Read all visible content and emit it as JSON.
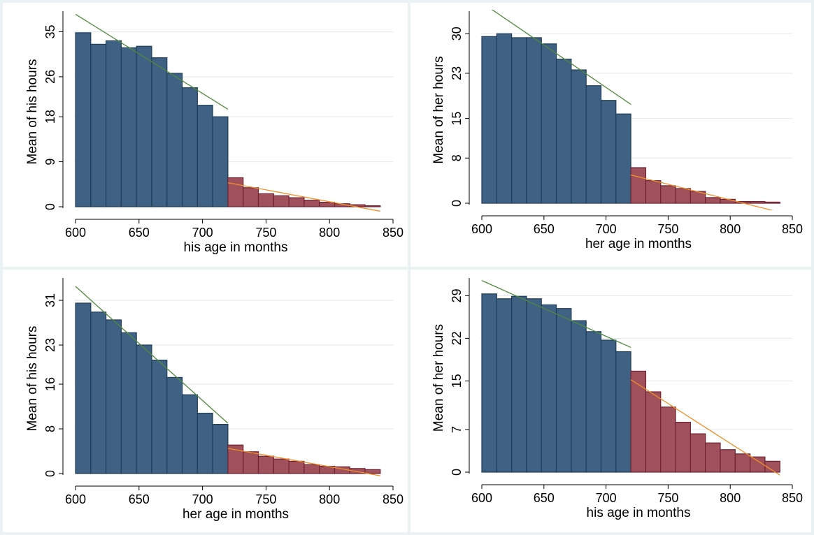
{
  "colors": {
    "bar_left": "#3f6184",
    "bar_left_edge": "#1f3d58",
    "bar_right": "#a0515b",
    "bar_right_edge": "#6e2233",
    "fit_left": "#4f8a3c",
    "fit_right": "#f0902a",
    "grid": "#e6ecef",
    "background": "#eaf2f3"
  },
  "chart_data": [
    {
      "type": "bar",
      "xlabel": "his age in months",
      "ylabel": "Mean of his hours",
      "xlim": [
        600,
        850
      ],
      "xticks": [
        600,
        650,
        700,
        750,
        800,
        850
      ],
      "ylim": [
        0,
        38
      ],
      "yticks": [
        0,
        9,
        18,
        26,
        35
      ],
      "bin_width": 12,
      "cutoff": 720,
      "bins_left": {
        "x": [
          600,
          612,
          624,
          636,
          648,
          660,
          672,
          684,
          696,
          708
        ],
        "values": [
          34.8,
          32.5,
          33.2,
          31.8,
          32.1,
          29.8,
          26.7,
          23.8,
          20.3,
          18.0
        ]
      },
      "bins_right": {
        "x": [
          720,
          732,
          744,
          756,
          768,
          780,
          792,
          804,
          816,
          828
        ],
        "values": [
          5.8,
          3.8,
          2.6,
          2.2,
          1.8,
          1.3,
          0.9,
          0.6,
          0.4,
          0.2
        ]
      },
      "fit_left": {
        "x": [
          600,
          720
        ],
        "y": [
          38.5,
          19.5
        ]
      },
      "fit_right": {
        "x": [
          720,
          840
        ],
        "y": [
          4.8,
          -0.9
        ]
      }
    },
    {
      "type": "bar",
      "xlabel": "her age in months",
      "ylabel": "Mean of her hours",
      "xlim": [
        600,
        850
      ],
      "xticks": [
        600,
        650,
        700,
        750,
        800,
        850
      ],
      "ylim": [
        0,
        33
      ],
      "yticks": [
        0,
        8,
        15,
        23,
        30
      ],
      "bin_width": 12,
      "cutoff": 720,
      "bins_left": {
        "x": [
          600,
          612,
          624,
          636,
          648,
          660,
          672,
          684,
          696,
          708
        ],
        "values": [
          29.5,
          30.0,
          29.3,
          29.3,
          28.2,
          25.5,
          23.6,
          20.8,
          18.2,
          15.8
        ]
      },
      "bins_right": {
        "x": [
          720,
          732,
          744,
          756,
          768,
          780,
          792,
          804,
          816,
          828
        ],
        "values": [
          6.3,
          4.0,
          3.1,
          2.6,
          2.1,
          1.0,
          0.7,
          0.3,
          0.3,
          0.2
        ]
      },
      "fit_left": {
        "x": [
          600,
          720
        ],
        "y": [
          35.5,
          17.5
        ]
      },
      "fit_right": {
        "x": [
          720,
          840
        ],
        "y": [
          5.0,
          -1.6
        ]
      }
    },
    {
      "type": "bar",
      "xlabel": "her age in months",
      "ylabel": "Mean of his hours",
      "xlim": [
        600,
        850
      ],
      "xticks": [
        600,
        650,
        700,
        750,
        800,
        850
      ],
      "ylim": [
        0,
        34
      ],
      "yticks": [
        0,
        8,
        16,
        23,
        31
      ],
      "bin_width": 12,
      "cutoff": 720,
      "bins_left": {
        "x": [
          600,
          612,
          624,
          636,
          648,
          660,
          672,
          684,
          696,
          708
        ],
        "values": [
          30.5,
          28.9,
          27.5,
          25.2,
          23.0,
          20.3,
          17.2,
          14.1,
          10.8,
          8.8
        ]
      },
      "bins_right": {
        "x": [
          720,
          732,
          744,
          756,
          768,
          780,
          792,
          804,
          816,
          828
        ],
        "values": [
          5.1,
          3.9,
          3.1,
          2.6,
          2.2,
          1.6,
          1.3,
          1.2,
          0.9,
          0.7
        ]
      },
      "fit_left": {
        "x": [
          600,
          720
        ],
        "y": [
          33.5,
          9.0
        ]
      },
      "fit_right": {
        "x": [
          720,
          840
        ],
        "y": [
          4.5,
          -0.4
        ]
      }
    },
    {
      "type": "bar",
      "xlabel": "his age in months",
      "ylabel": "Mean of her hours",
      "xlim": [
        600,
        850
      ],
      "xticks": [
        600,
        650,
        700,
        750,
        800,
        850
      ],
      "ylim": [
        0,
        31
      ],
      "yticks": [
        0,
        7,
        15,
        22,
        29
      ],
      "bin_width": 12,
      "cutoff": 720,
      "bins_left": {
        "x": [
          600,
          612,
          624,
          636,
          648,
          660,
          672,
          684,
          696,
          708
        ],
        "values": [
          29.3,
          28.5,
          28.9,
          28.5,
          27.5,
          26.9,
          24.9,
          23.1,
          21.7,
          19.8
        ]
      },
      "bins_right": {
        "x": [
          720,
          732,
          744,
          756,
          768,
          780,
          792,
          804,
          816,
          828
        ],
        "values": [
          16.6,
          13.2,
          10.7,
          8.2,
          6.3,
          4.8,
          3.7,
          3.0,
          2.5,
          1.8
        ]
      },
      "fit_left": {
        "x": [
          600,
          720
        ],
        "y": [
          31.5,
          20.5
        ]
      },
      "fit_right": {
        "x": [
          720,
          840
        ],
        "y": [
          15.2,
          -0.5
        ]
      }
    }
  ]
}
